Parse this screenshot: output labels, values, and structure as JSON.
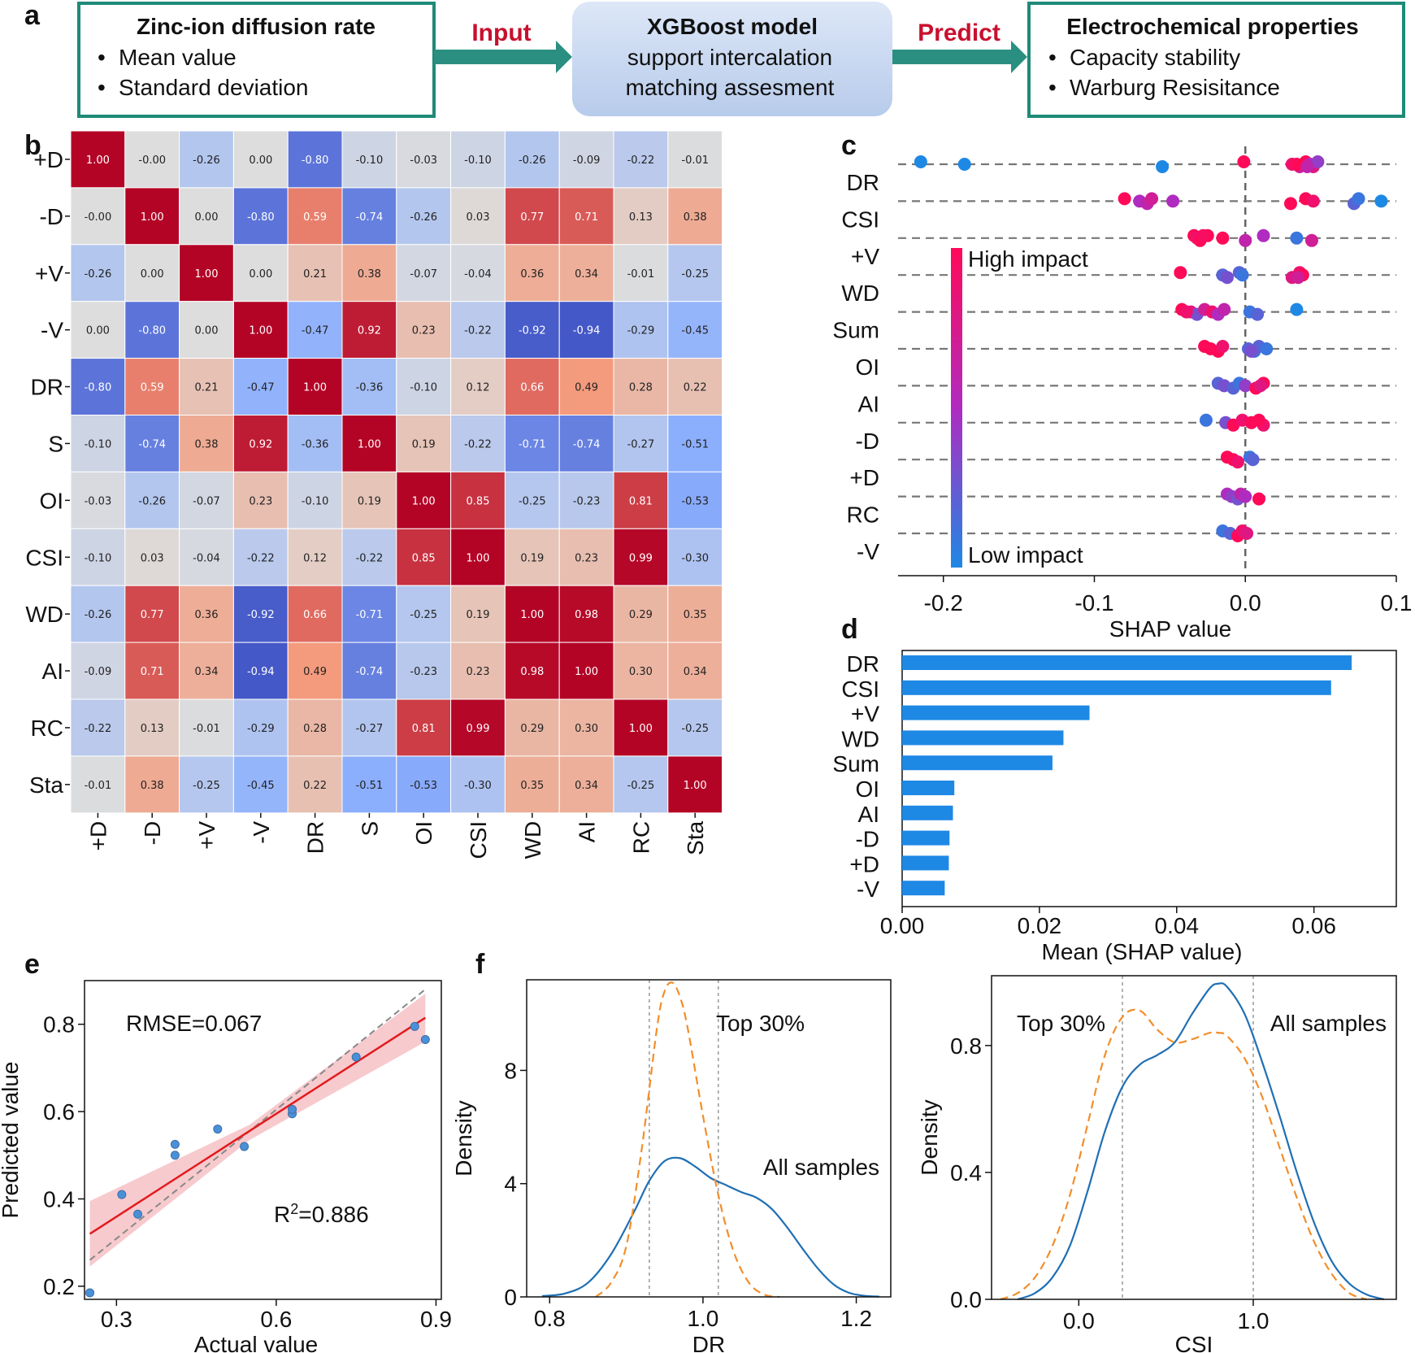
{
  "panel_labels": {
    "a": "a",
    "b": "b",
    "c": "c",
    "d": "d",
    "e": "e",
    "f": "f"
  },
  "flow": {
    "box1": {
      "title": "Zinc-ion diffusion rate",
      "bullets": [
        "Mean value",
        "Standard deviation"
      ]
    },
    "arrow1": "Input",
    "box2": {
      "lines": [
        "XGBoost model",
        "support intercalation",
        "matching assesment"
      ]
    },
    "arrow2": "Predict",
    "box3": {
      "title": "Electrochemical properties",
      "bullets": [
        "Capacity stability",
        "Warburg Resisitance"
      ]
    },
    "bullet_char": "•",
    "colors": {
      "border": "#1f8a78",
      "arrow": "#2a8f80",
      "model_box": "#c9d8f0",
      "label": "#c8102e"
    }
  },
  "chart_data": [
    {
      "id": "b",
      "type": "heatmap",
      "title": "",
      "rows": [
        "+D",
        "-D",
        "+V",
        "-V",
        "DR",
        "S",
        "OI",
        "CSI",
        "WD",
        "AI",
        "RC",
        "Sta"
      ],
      "cols": [
        "+D",
        "-D",
        "+V",
        "-V",
        "DR",
        "S",
        "OI",
        "CSI",
        "WD",
        "AI",
        "RC",
        "Sta"
      ],
      "values": [
        [
          "1.00",
          "-0.00",
          "-0.26",
          "0.00",
          "-0.80",
          "-0.10",
          "-0.03",
          "-0.10",
          "-0.26",
          "-0.09",
          "-0.22",
          "-0.01"
        ],
        [
          "-0.00",
          "1.00",
          "0.00",
          "-0.80",
          "0.59",
          "-0.74",
          "-0.26",
          "0.03",
          "0.77",
          "0.71",
          "0.13",
          "0.38"
        ],
        [
          "-0.26",
          "0.00",
          "1.00",
          "0.00",
          "0.21",
          "0.38",
          "-0.07",
          "-0.04",
          "0.36",
          "0.34",
          "-0.01",
          "-0.25"
        ],
        [
          "0.00",
          "-0.80",
          "0.00",
          "1.00",
          "-0.47",
          "0.92",
          "0.23",
          "-0.22",
          "-0.92",
          "-0.94",
          "-0.29",
          "-0.45"
        ],
        [
          "-0.80",
          "0.59",
          "0.21",
          "-0.47",
          "1.00",
          "-0.36",
          "-0.10",
          "0.12",
          "0.66",
          "0.49",
          "0.28",
          "0.22"
        ],
        [
          "-0.10",
          "-0.74",
          "0.38",
          "0.92",
          "-0.36",
          "1.00",
          "0.19",
          "-0.22",
          "-0.71",
          "-0.74",
          "-0.27",
          "-0.51"
        ],
        [
          "-0.03",
          "-0.26",
          "-0.07",
          "0.23",
          "-0.10",
          "0.19",
          "1.00",
          "0.85",
          "-0.25",
          "-0.23",
          "0.81",
          "-0.53"
        ],
        [
          "-0.10",
          "0.03",
          "-0.04",
          "-0.22",
          "0.12",
          "-0.22",
          "0.85",
          "1.00",
          "0.19",
          "0.23",
          "0.99",
          "-0.30"
        ],
        [
          "-0.26",
          "0.77",
          "0.36",
          "-0.92",
          "0.66",
          "-0.71",
          "-0.25",
          "0.19",
          "1.00",
          "0.98",
          "0.29",
          "0.35"
        ],
        [
          "-0.09",
          "0.71",
          "0.34",
          "-0.94",
          "0.49",
          "-0.74",
          "-0.23",
          "0.23",
          "0.98",
          "1.00",
          "0.30",
          "0.34"
        ],
        [
          "-0.22",
          "0.13",
          "-0.01",
          "-0.29",
          "0.28",
          "-0.27",
          "0.81",
          "0.99",
          "0.29",
          "0.30",
          "1.00",
          "-0.25"
        ],
        [
          "-0.01",
          "0.38",
          "-0.25",
          "-0.45",
          "0.22",
          "-0.51",
          "-0.53",
          "-0.30",
          "0.35",
          "0.34",
          "-0.25",
          "1.00"
        ]
      ],
      "vmin": -1,
      "vmax": 1,
      "colormap": "coolwarm"
    },
    {
      "id": "c",
      "type": "scatter",
      "title": "",
      "features": [
        "DR",
        "CSI",
        "+V",
        "WD",
        "Sum",
        "OI",
        "AI",
        "-D",
        "+D",
        "RC",
        "-V"
      ],
      "xlabel": "SHAP value",
      "xlim": [
        -0.23,
        0.1
      ],
      "xticks": [
        -0.2,
        -0.1,
        0.0,
        0.1
      ],
      "xtick_labels": [
        "-0.2",
        "-0.1",
        "0.0",
        "0.1"
      ],
      "colorbar": {
        "high_label": "High impact",
        "low_label": "Low impact",
        "high_color": "#ff0a58",
        "low_color": "#1e88e5"
      },
      "points": {
        "DR": [
          [
            -0.215,
            0
          ],
          [
            -0.186,
            0
          ],
          [
            -0.055,
            0
          ],
          [
            -0.001,
            1
          ],
          [
            0.031,
            0.9
          ],
          [
            0.036,
            0.7
          ],
          [
            0.04,
            1
          ],
          [
            0.043,
            0.5
          ],
          [
            0.045,
            0.8
          ],
          [
            0.048,
            0.4
          ],
          [
            0.034,
            1
          ],
          [
            0.041,
            0.6
          ]
        ],
        "CSI": [
          [
            -0.08,
            1
          ],
          [
            -0.07,
            0.5
          ],
          [
            -0.065,
            0.6
          ],
          [
            -0.062,
            0.7
          ],
          [
            -0.048,
            0.5
          ],
          [
            0.03,
            1
          ],
          [
            0.04,
            1
          ],
          [
            0.045,
            0.9
          ],
          [
            0.072,
            0.2
          ],
          [
            0.075,
            0.1
          ],
          [
            0.09,
            0
          ]
        ],
        "+V": [
          [
            -0.034,
            1
          ],
          [
            -0.032,
            0.9
          ],
          [
            -0.03,
            1
          ],
          [
            -0.025,
            1
          ],
          [
            -0.015,
            1
          ],
          [
            0.0,
            0.6
          ],
          [
            0.012,
            0.5
          ],
          [
            0.034,
            0.1
          ],
          [
            0.044,
            0.7
          ],
          [
            -0.028,
            0.95
          ]
        ],
        "WD": [
          [
            -0.043,
            1
          ],
          [
            -0.015,
            0.2
          ],
          [
            -0.012,
            0.3
          ],
          [
            -0.004,
            0.2
          ],
          [
            -0.002,
            0.1
          ],
          [
            0.031,
            0.8
          ],
          [
            0.036,
            0.9
          ],
          [
            0.038,
            1
          ],
          [
            0.035,
            0.7
          ]
        ],
        "Sum": [
          [
            -0.042,
            1
          ],
          [
            -0.036,
            0.8
          ],
          [
            -0.032,
            0.3
          ],
          [
            -0.027,
            0.7
          ],
          [
            -0.022,
            0.9
          ],
          [
            -0.018,
            0.5
          ],
          [
            -0.014,
            0.6
          ],
          [
            0.003,
            0.1
          ],
          [
            0.008,
            0.2
          ],
          [
            0.034,
            0.0
          ],
          [
            -0.039,
            0.9
          ]
        ],
        "OI": [
          [
            -0.027,
            1
          ],
          [
            -0.023,
            1
          ],
          [
            -0.018,
            1
          ],
          [
            -0.015,
            0.9
          ],
          [
            0.002,
            0.2
          ],
          [
            0.006,
            0.1
          ],
          [
            0.009,
            0.2
          ],
          [
            0.014,
            0.1
          ],
          [
            0.004,
            0.3
          ]
        ],
        "AI": [
          [
            -0.018,
            0.2
          ],
          [
            -0.014,
            0.3
          ],
          [
            -0.008,
            0.2
          ],
          [
            -0.004,
            0.1
          ],
          [
            0.0,
            0.4
          ],
          [
            0.007,
            1
          ],
          [
            0.012,
            1
          ],
          [
            0.01,
            0.8
          ]
        ],
        "-D": [
          [
            -0.026,
            0.1
          ],
          [
            -0.013,
            0.3
          ],
          [
            -0.008,
            1
          ],
          [
            -0.002,
            0.9
          ],
          [
            0.004,
            1
          ],
          [
            0.012,
            0.9
          ],
          [
            0.009,
            1
          ]
        ],
        "+D": [
          [
            -0.012,
            1
          ],
          [
            -0.008,
            1
          ],
          [
            -0.005,
            0.9
          ],
          [
            0.003,
            0.1
          ],
          [
            0.005,
            0.2
          ]
        ],
        "RC": [
          [
            -0.012,
            0.5
          ],
          [
            -0.009,
            0.4
          ],
          [
            -0.005,
            0.3
          ],
          [
            -0.003,
            0.6
          ],
          [
            0.0,
            0.5
          ],
          [
            0.009,
            1
          ]
        ],
        "-V": [
          [
            -0.015,
            0.1
          ],
          [
            -0.01,
            0.2
          ],
          [
            -0.005,
            1
          ],
          [
            -0.002,
            0.9
          ],
          [
            0.001,
            0.8
          ]
        ]
      }
    },
    {
      "id": "d",
      "type": "bar",
      "orientation": "horizontal",
      "title": "",
      "categories": [
        "DR",
        "CSI",
        "+V",
        "WD",
        "Sum",
        "OI",
        "AI",
        "-D",
        "+D",
        "-V"
      ],
      "values": [
        0.0655,
        0.0625,
        0.0273,
        0.0235,
        0.0219,
        0.0076,
        0.0074,
        0.0069,
        0.0068,
        0.0062
      ],
      "xlabel": "Mean (SHAP value)",
      "ylabel": "",
      "xlim": [
        0.0,
        0.072
      ],
      "xticks": [
        0.0,
        0.02,
        0.04,
        0.06
      ],
      "xtick_labels": [
        "0.00",
        "0.02",
        "0.04",
        "0.06"
      ],
      "color": "#1e88e5"
    },
    {
      "id": "e",
      "type": "scatter",
      "title": "",
      "xlabel": "Actual value",
      "ylabel": "Predicted value",
      "xlim": [
        0.24,
        0.91
      ],
      "ylim": [
        0.17,
        0.9
      ],
      "xticks": [
        0.3,
        0.6,
        0.9
      ],
      "xtick_labels": [
        "0.3",
        "0.6",
        "0.9"
      ],
      "yticks": [
        0.2,
        0.4,
        0.6,
        0.8
      ],
      "ytick_labels": [
        "0.2",
        "0.4",
        "0.6",
        "0.8"
      ],
      "points": [
        [
          0.25,
          0.185
        ],
        [
          0.31,
          0.41
        ],
        [
          0.34,
          0.365
        ],
        [
          0.41,
          0.5
        ],
        [
          0.41,
          0.525
        ],
        [
          0.49,
          0.56
        ],
        [
          0.54,
          0.52
        ],
        [
          0.63,
          0.595
        ],
        [
          0.63,
          0.605
        ],
        [
          0.75,
          0.725
        ],
        [
          0.86,
          0.795
        ],
        [
          0.88,
          0.765
        ]
      ],
      "fit_line": [
        [
          0.25,
          0.32
        ],
        [
          0.88,
          0.815
        ]
      ],
      "band": {
        "upper": [
          [
            0.25,
            0.395
          ],
          [
            0.55,
            0.57
          ],
          [
            0.88,
            0.87
          ]
        ],
        "lower": [
          [
            0.25,
            0.245
          ],
          [
            0.55,
            0.535
          ],
          [
            0.88,
            0.76
          ]
        ]
      },
      "identity_line": [
        [
          0.25,
          0.26
        ],
        [
          0.88,
          0.88
        ]
      ],
      "annotations": {
        "rmse": "RMSE=0.067",
        "r2_prefix": "R",
        "r2_sup": "2",
        "r2_value": "=0.886"
      },
      "colors": {
        "points": "#4a90d9",
        "fit": "#e31a1c",
        "band": "#f6c1c6",
        "identity": "#888888"
      }
    },
    {
      "id": "f1",
      "type": "line",
      "title": "",
      "xlabel": "DR",
      "ylabel": "Density",
      "xlim": [
        0.77,
        1.245
      ],
      "ylim": [
        0,
        11.2
      ],
      "xticks": [
        0.8,
        1.0,
        1.2
      ],
      "xtick_labels": [
        "0.8",
        "1.0",
        "1.2"
      ],
      "yticks": [
        0,
        4,
        8
      ],
      "ytick_labels": [
        "0",
        "4",
        "8"
      ],
      "vlines": [
        0.93,
        1.02
      ],
      "series": [
        {
          "name": "All samples",
          "style": "solid",
          "color": "#1f6fb4",
          "x": [
            0.79,
            0.82,
            0.85,
            0.88,
            0.91,
            0.93,
            0.95,
            0.97,
            0.99,
            1.01,
            1.03,
            1.05,
            1.07,
            1.09,
            1.11,
            1.13,
            1.15,
            1.17,
            1.19,
            1.21,
            1.23
          ],
          "y": [
            0.03,
            0.12,
            0.5,
            1.5,
            3.0,
            4.1,
            4.8,
            4.9,
            4.6,
            4.2,
            3.95,
            3.7,
            3.5,
            3.1,
            2.45,
            1.7,
            1.0,
            0.45,
            0.15,
            0.04,
            0.01
          ]
        },
        {
          "name": "Top 30%",
          "style": "dashed",
          "color": "#f28e2b",
          "x": [
            0.86,
            0.88,
            0.9,
            0.92,
            0.94,
            0.95,
            0.96,
            0.97,
            0.98,
            1.0,
            1.02,
            1.04,
            1.06,
            1.08,
            1.1
          ],
          "y": [
            0.0,
            0.5,
            1.8,
            5.2,
            9.5,
            10.8,
            11.1,
            10.6,
            9.5,
            6.4,
            3.6,
            1.6,
            0.5,
            0.08,
            0.0
          ]
        }
      ],
      "labels": {
        "top": "Top 30%",
        "all": "All samples"
      }
    },
    {
      "id": "f2",
      "type": "line",
      "title": "",
      "xlabel": "CSI",
      "ylabel": "Density",
      "xlim": [
        -0.5,
        1.82
      ],
      "ylim": [
        0,
        1.02
      ],
      "xticks": [
        0.0,
        1.0
      ],
      "xtick_labels": [
        "0.0",
        "1.0"
      ],
      "yticks": [
        0.0,
        0.4,
        0.8
      ],
      "ytick_labels": [
        "0.0",
        "0.4",
        "0.8"
      ],
      "vlines": [
        0.25,
        1.0
      ],
      "series": [
        {
          "name": "All samples",
          "style": "solid",
          "color": "#1f6fb4",
          "x": [
            -0.35,
            -0.25,
            -0.15,
            -0.05,
            0.05,
            0.15,
            0.25,
            0.35,
            0.45,
            0.55,
            0.65,
            0.75,
            0.8,
            0.85,
            0.95,
            1.05,
            1.15,
            1.25,
            1.35,
            1.45,
            1.55,
            1.65,
            1.75
          ],
          "y": [
            0.0,
            0.02,
            0.07,
            0.17,
            0.34,
            0.53,
            0.67,
            0.74,
            0.77,
            0.81,
            0.9,
            0.98,
            0.995,
            0.985,
            0.9,
            0.75,
            0.58,
            0.4,
            0.24,
            0.12,
            0.05,
            0.015,
            0.0
          ]
        },
        {
          "name": "Top 30%",
          "style": "dashed",
          "color": "#f28e2b",
          "x": [
            -0.45,
            -0.35,
            -0.25,
            -0.15,
            -0.05,
            0.05,
            0.15,
            0.25,
            0.35,
            0.45,
            0.55,
            0.65,
            0.75,
            0.8,
            0.85,
            0.95,
            1.05,
            1.15,
            1.25,
            1.35,
            1.45,
            1.55,
            1.65
          ],
          "y": [
            0.0,
            0.02,
            0.07,
            0.17,
            0.33,
            0.55,
            0.77,
            0.89,
            0.91,
            0.85,
            0.81,
            0.82,
            0.84,
            0.84,
            0.83,
            0.76,
            0.64,
            0.48,
            0.32,
            0.18,
            0.08,
            0.02,
            0.0
          ]
        }
      ],
      "labels": {
        "top": "Top 30%",
        "all": "All samples"
      }
    }
  ]
}
